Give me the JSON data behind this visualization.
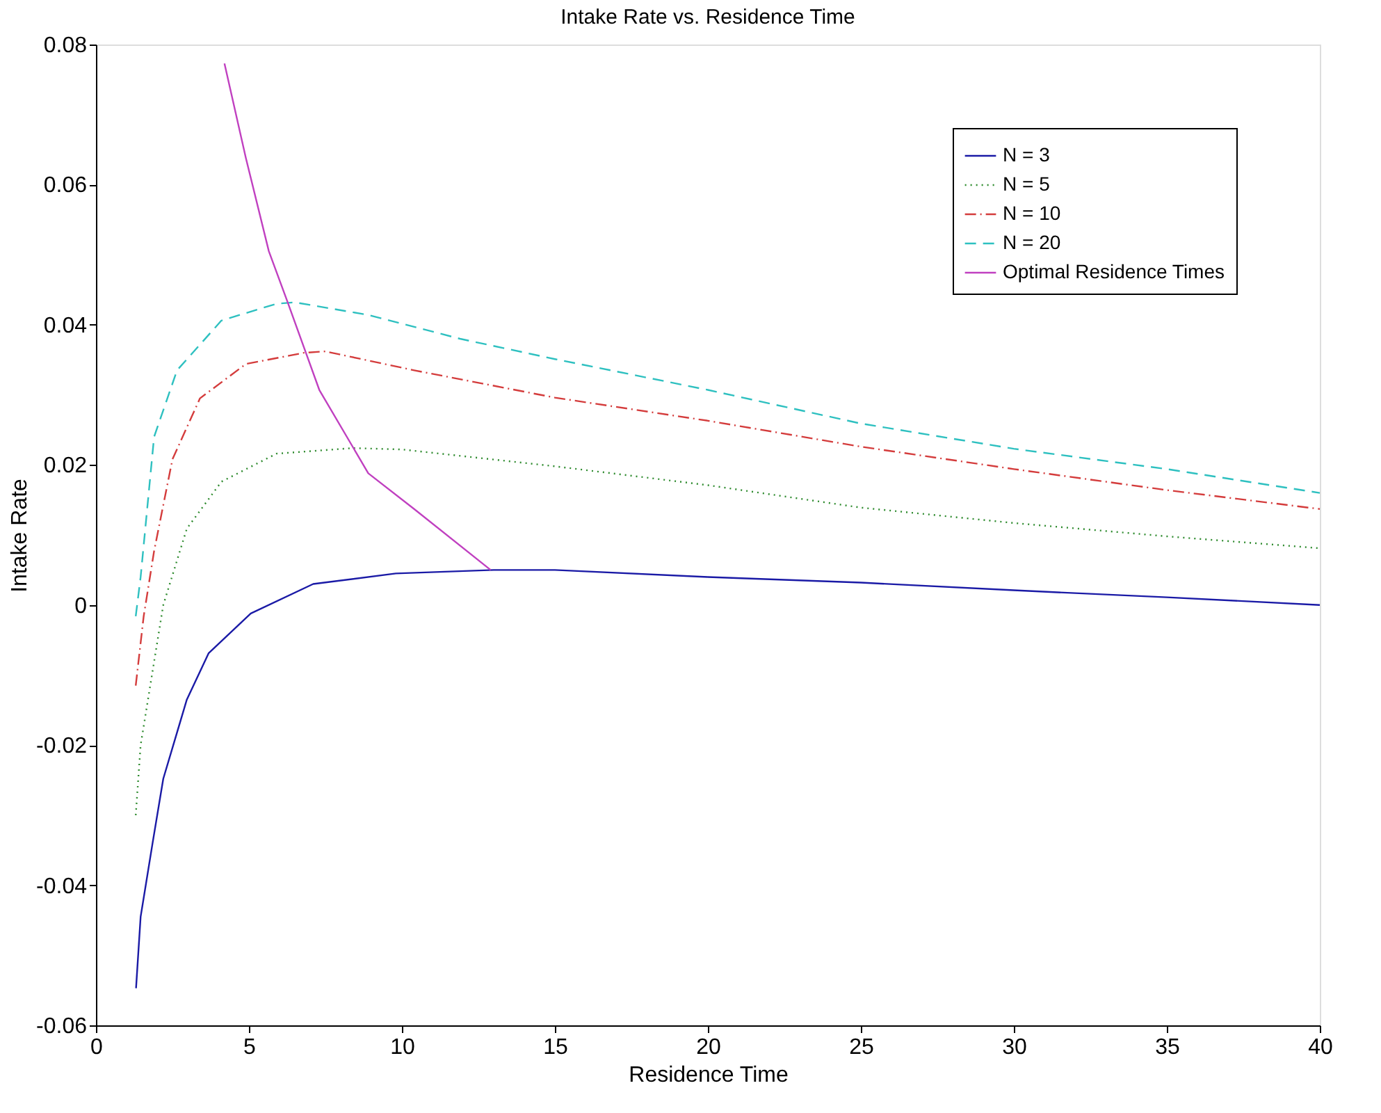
{
  "chart_data": {
    "type": "line",
    "title": "Intake Rate vs. Residence Time",
    "xlabel": "Residence Time",
    "ylabel": "Intake Rate",
    "xlim": [
      0,
      40
    ],
    "ylim": [
      -0.06,
      0.08
    ],
    "xticks": [
      0,
      5,
      10,
      15,
      20,
      25,
      30,
      35,
      40
    ],
    "yticks": [
      -0.06,
      -0.04,
      -0.02,
      0,
      0.02,
      0.04,
      0.06,
      0.08
    ],
    "grid": false,
    "legend": "top right",
    "marker": "none",
    "series": [
      {
        "name": "N = 3",
        "color": "#1a1aa6",
        "line_style": "solid",
        "x": [
          1.31,
          1.46,
          1.85,
          2.2,
          2.97,
          3.68,
          5.06,
          7.1,
          9.8,
          13,
          15,
          20,
          25,
          30,
          35,
          40
        ],
        "values": [
          -0.0547,
          -0.0445,
          -0.034,
          -0.0248,
          -0.0135,
          -0.0069,
          -0.0012,
          0.003,
          0.0045,
          0.005,
          0.005,
          0.004,
          0.0032,
          0.0021,
          0.0011,
          0.0
        ]
      },
      {
        "name": "N = 5",
        "color": "#2e8b2e",
        "line_style": "dotted",
        "x": [
          1.3,
          1.46,
          1.9,
          2.2,
          2.97,
          4.1,
          5.9,
          8.4,
          10,
          15,
          20,
          25,
          30,
          35,
          40
        ],
        "values": [
          -0.03,
          -0.02,
          -0.0081,
          0.0,
          0.0109,
          0.0176,
          0.0216,
          0.0224,
          0.0222,
          0.0198,
          0.0171,
          0.0139,
          0.0117,
          0.0098,
          0.0081
        ]
      },
      {
        "name": "N = 10",
        "color": "#d43c3c",
        "line_style": "dashdot",
        "x": [
          1.3,
          1.56,
          1.9,
          2.5,
          3.4,
          4.9,
          6.8,
          7.5,
          10.4,
          15,
          20,
          25,
          30,
          35,
          40
        ],
        "values": [
          -0.0115,
          -0.0016,
          0.0077,
          0.0208,
          0.0295,
          0.0344,
          0.036,
          0.0362,
          0.0335,
          0.0296,
          0.0263,
          0.0226,
          0.0194,
          0.0164,
          0.0137
        ]
      },
      {
        "name": "N = 20",
        "color": "#2ec0c0",
        "line_style": "dashed",
        "x": [
          1.3,
          1.46,
          1.9,
          2.65,
          4.1,
          5.9,
          6.5,
          8.9,
          11.9,
          15,
          20,
          25,
          30,
          35,
          40
        ],
        "values": [
          -0.0016,
          0.004,
          0.024,
          0.0335,
          0.0406,
          0.043,
          0.0432,
          0.0414,
          0.038,
          0.0351,
          0.0307,
          0.0259,
          0.0223,
          0.0194,
          0.016
        ]
      },
      {
        "name": "Optimal Residence Times",
        "color": "#c040c0",
        "line_style": "solid",
        "x": [
          4.2,
          4.9,
          5.65,
          6.25,
          7.3,
          8.9,
          10.4,
          12.9
        ],
        "values": [
          0.0773,
          0.0638,
          0.0505,
          0.0434,
          0.0307,
          0.0188,
          0.0137,
          0.005
        ]
      }
    ]
  }
}
